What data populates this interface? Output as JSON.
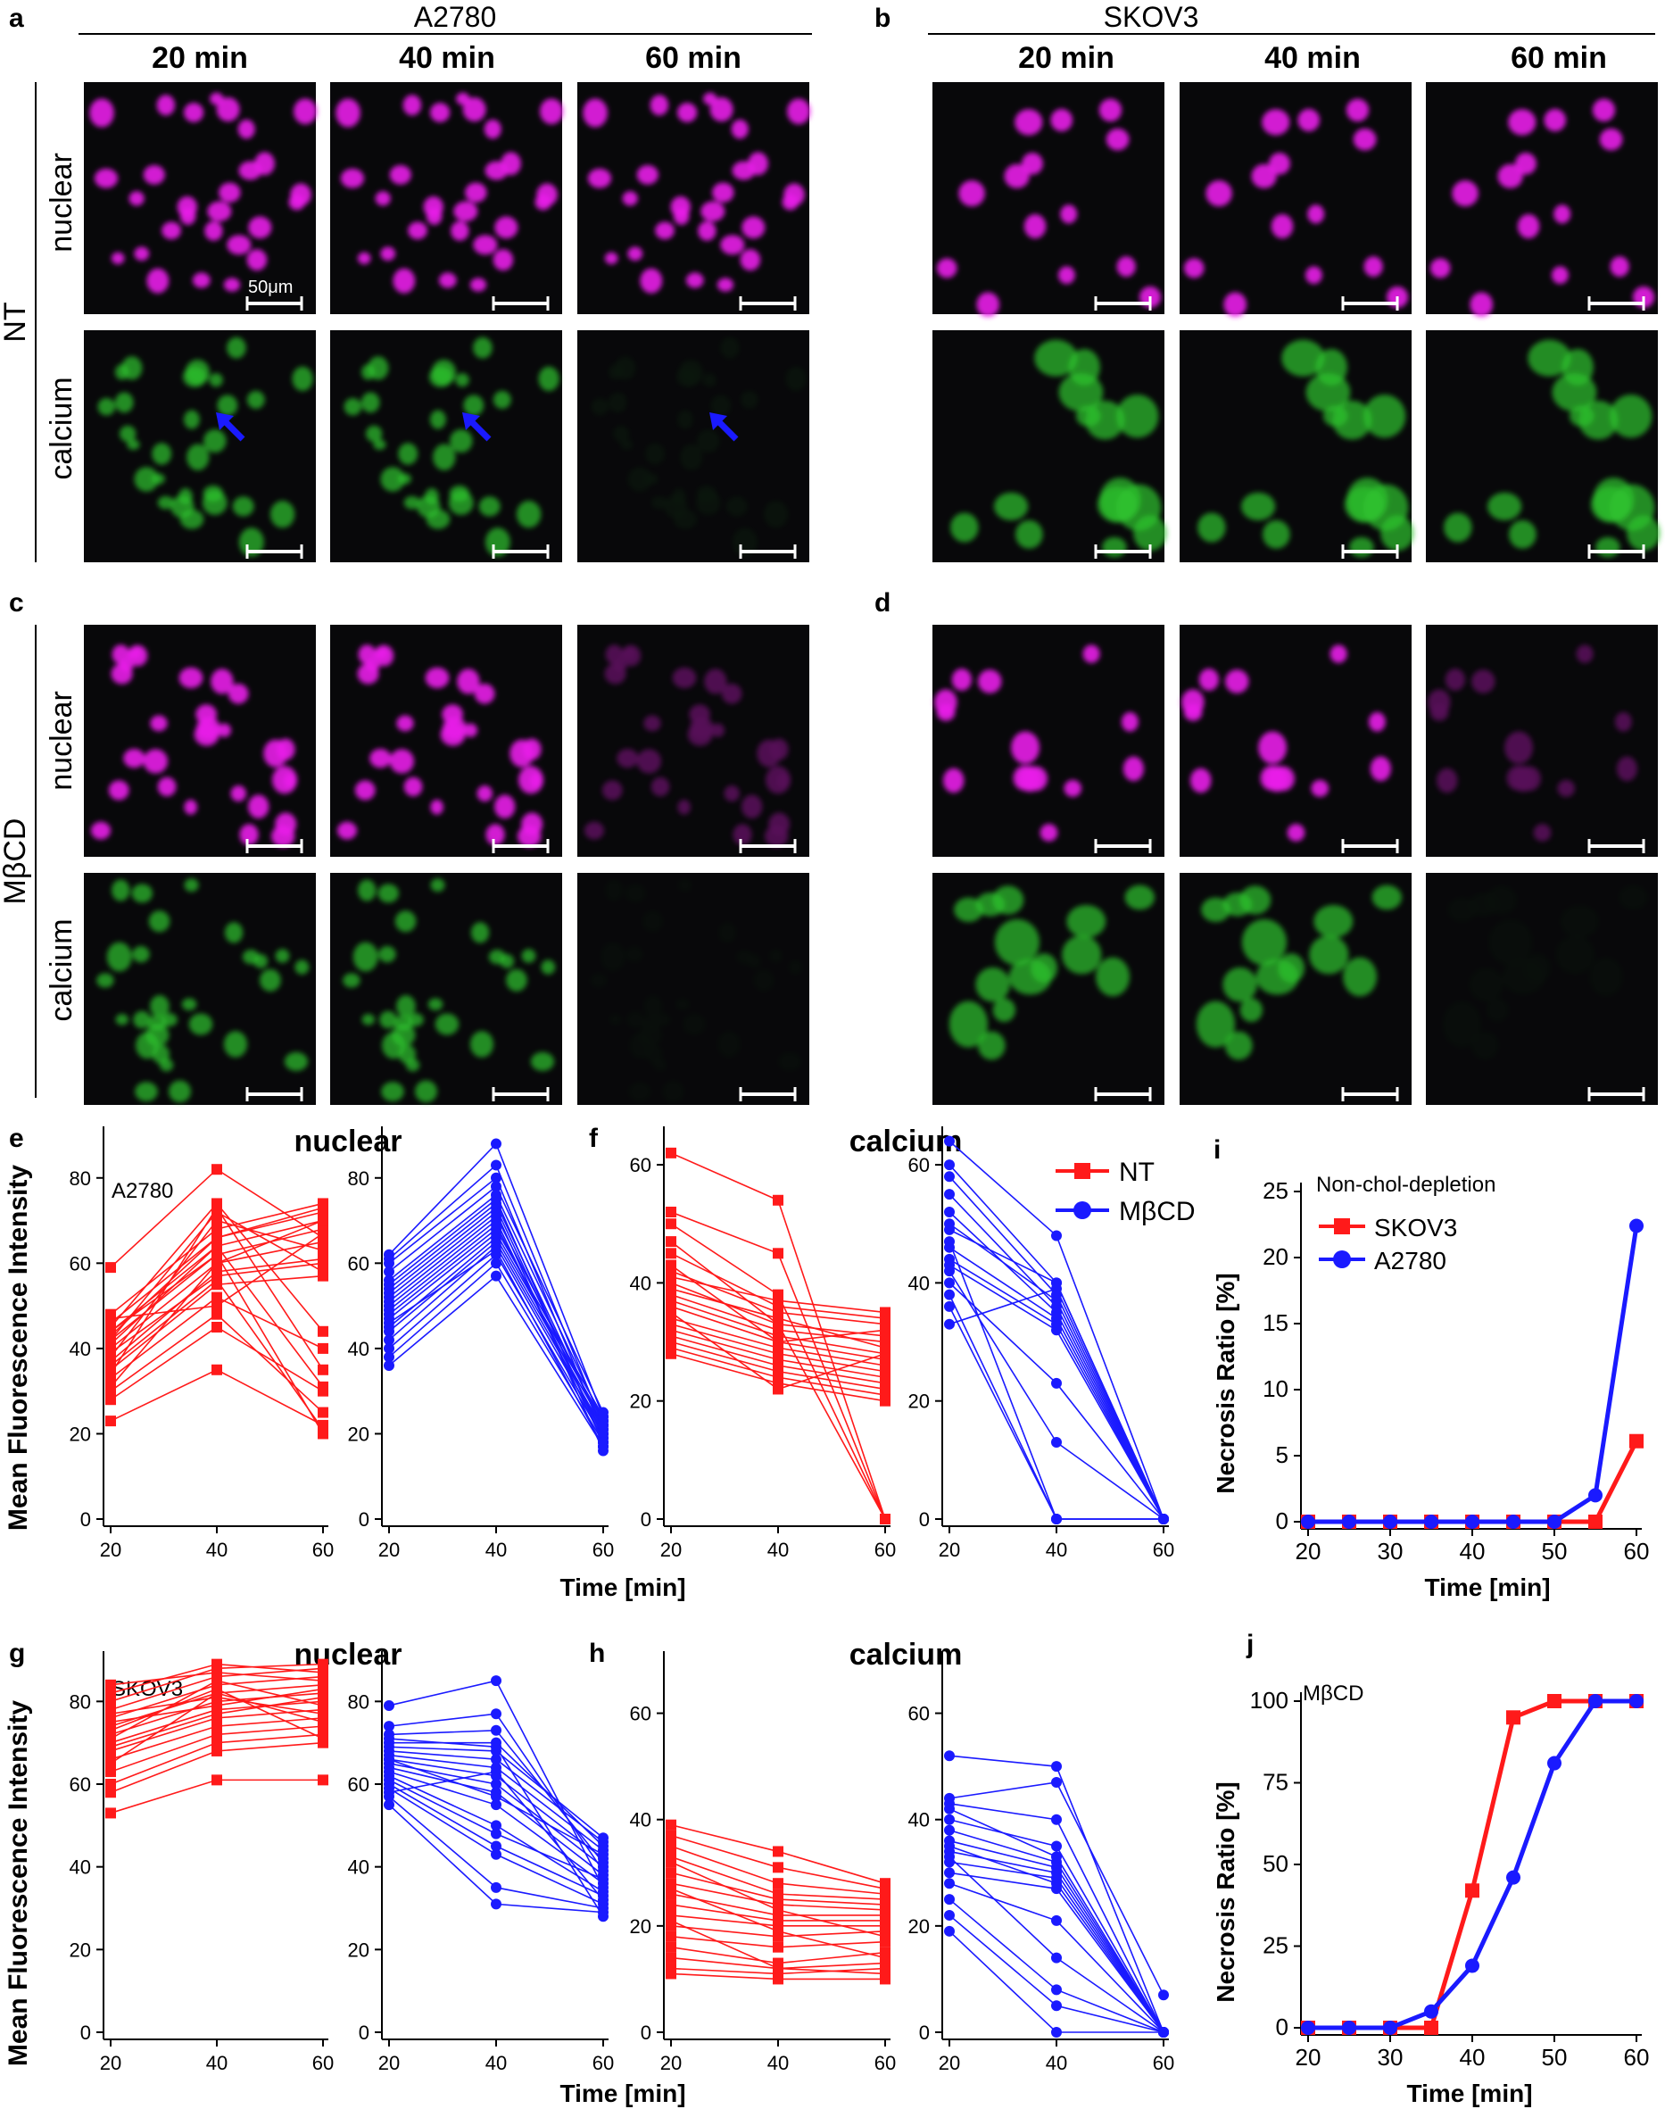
{
  "panel_letters": {
    "a": "a",
    "b": "b",
    "c": "c",
    "d": "d",
    "e": "e",
    "f": "f",
    "g": "g",
    "h": "h",
    "i": "i",
    "j": "j"
  },
  "cell_lines": {
    "left": "A2780",
    "right": "SKOV3"
  },
  "time_labels": [
    "20 min",
    "40 min",
    "60 min"
  ],
  "row_labels": {
    "nuclear": "nuclear",
    "calcium": "calcium"
  },
  "treatment_labels": {
    "nt": "NT",
    "mbcd": "MβCD"
  },
  "scale_bar_label": "50μm",
  "colors": {
    "nt": "#ff1a1a",
    "mbcd": "#1a1aff",
    "nuclear_stain": "#e81ee8",
    "calcium_stain": "#2fc42f",
    "micrograph_bg": "#08080a",
    "arrow": "#1a1aff"
  },
  "legend": {
    "nt": "NT",
    "mbcd": "MβCD"
  },
  "axis": {
    "y_mfi": "Mean Fluorescence Intensity",
    "time": "Time [min]",
    "necrosis": "Necrosis Ratio [%]"
  },
  "chart_titles": {
    "nuclear": "nuclear",
    "calcium": "calcium",
    "e_sub": "A2780",
    "g_sub": "SKOV3",
    "i_sub": "Non-chol-depletion",
    "j_sub": "MβCD"
  },
  "chart_data": [
    {
      "id": "e-nt",
      "type": "line",
      "x": [
        20,
        40,
        60
      ],
      "ylim": [
        0,
        90
      ],
      "yticks": [
        0,
        20,
        40,
        60,
        80
      ],
      "color": "#ff1a1a",
      "marker": "square",
      "series": [
        [
          23,
          35,
          22
        ],
        [
          28,
          45,
          30
        ],
        [
          30,
          48,
          25
        ],
        [
          33,
          52,
          40
        ],
        [
          35,
          55,
          57
        ],
        [
          37,
          58,
          61
        ],
        [
          40,
          60,
          65
        ],
        [
          42,
          62,
          68
        ],
        [
          44,
          64,
          70
        ],
        [
          46,
          66,
          72
        ],
        [
          48,
          68,
          74
        ],
        [
          38,
          70,
          63
        ],
        [
          42,
          72,
          58
        ],
        [
          45,
          74,
          44
        ],
        [
          31,
          60,
          70
        ],
        [
          41,
          64,
          31
        ],
        [
          47,
          50,
          67
        ],
        [
          59,
          82,
          66
        ],
        [
          36,
          56,
          21
        ],
        [
          43,
          66,
          73
        ],
        [
          34,
          73,
          35
        ],
        [
          39,
          57,
          60
        ],
        [
          44,
          62,
          20
        ]
      ]
    },
    {
      "id": "e-mbcd",
      "type": "line",
      "x": [
        20,
        40,
        60
      ],
      "ylim": [
        0,
        90
      ],
      "yticks": [
        0,
        20,
        40,
        60,
        80
      ],
      "color": "#1a1aff",
      "marker": "circle",
      "series": [
        [
          36,
          57,
          17
        ],
        [
          38,
          60,
          18
        ],
        [
          40,
          62,
          19
        ],
        [
          42,
          64,
          20
        ],
        [
          44,
          65,
          21
        ],
        [
          45,
          66,
          22
        ],
        [
          47,
          67,
          23
        ],
        [
          48,
          68,
          24
        ],
        [
          49,
          69,
          20
        ],
        [
          50,
          70,
          18
        ],
        [
          51,
          71,
          22
        ],
        [
          52,
          72,
          16
        ],
        [
          53,
          73,
          19
        ],
        [
          54,
          74,
          21
        ],
        [
          56,
          76,
          23
        ],
        [
          58,
          78,
          25
        ],
        [
          60,
          80,
          20
        ],
        [
          61,
          83,
          22
        ],
        [
          62,
          88,
          24
        ],
        [
          46,
          63,
          17
        ],
        [
          55,
          75,
          18
        ]
      ]
    },
    {
      "id": "f-nt",
      "type": "line",
      "x": [
        20,
        40,
        60
      ],
      "ylim": [
        0,
        65
      ],
      "yticks": [
        0,
        20,
        40,
        60
      ],
      "color": "#ff1a1a",
      "marker": "square",
      "series": [
        [
          62,
          54,
          0
        ],
        [
          52,
          45,
          0
        ],
        [
          50,
          38,
          0
        ],
        [
          45,
          36,
          34
        ],
        [
          42,
          35,
          33
        ],
        [
          40,
          33,
          31
        ],
        [
          38,
          32,
          30
        ],
        [
          37,
          31,
          28
        ],
        [
          36,
          30,
          27
        ],
        [
          34,
          29,
          26
        ],
        [
          33,
          28,
          25
        ],
        [
          32,
          27,
          24
        ],
        [
          31,
          26,
          23
        ],
        [
          30,
          25,
          22
        ],
        [
          29,
          24,
          21
        ],
        [
          28,
          23,
          20
        ],
        [
          41,
          37,
          35
        ],
        [
          39,
          34,
          29
        ],
        [
          35,
          22,
          28
        ],
        [
          43,
          30,
          32
        ],
        [
          47,
          33,
          0
        ]
      ]
    },
    {
      "id": "f-mbcd",
      "type": "line",
      "x": [
        20,
        40,
        60
      ],
      "ylim": [
        0,
        65
      ],
      "yticks": [
        0,
        20,
        40,
        60
      ],
      "color": "#1a1aff",
      "marker": "circle",
      "series": [
        [
          64,
          48,
          0
        ],
        [
          60,
          40,
          0
        ],
        [
          58,
          38,
          0
        ],
        [
          55,
          36,
          0
        ],
        [
          52,
          35,
          0
        ],
        [
          49,
          40,
          0
        ],
        [
          46,
          34,
          0
        ],
        [
          44,
          33,
          0
        ],
        [
          42,
          13,
          0
        ],
        [
          40,
          23,
          0
        ],
        [
          38,
          0,
          0
        ],
        [
          36,
          0,
          0
        ],
        [
          33,
          39,
          0
        ],
        [
          50,
          37,
          0
        ],
        [
          47,
          0,
          0
        ],
        [
          43,
          32,
          0
        ]
      ]
    },
    {
      "id": "g-nt",
      "type": "line",
      "x": [
        20,
        40,
        60
      ],
      "ylim": [
        0,
        90
      ],
      "yticks": [
        0,
        20,
        40,
        60,
        80
      ],
      "color": "#ff1a1a",
      "marker": "square",
      "series": [
        [
          53,
          61,
          61
        ],
        [
          58,
          68,
          70
        ],
        [
          60,
          70,
          72
        ],
        [
          63,
          72,
          74
        ],
        [
          66,
          74,
          76
        ],
        [
          68,
          76,
          78
        ],
        [
          70,
          78,
          80
        ],
        [
          72,
          80,
          82
        ],
        [
          74,
          82,
          84
        ],
        [
          76,
          84,
          86
        ],
        [
          78,
          86,
          88
        ],
        [
          80,
          88,
          89
        ],
        [
          82,
          89,
          87
        ],
        [
          84,
          87,
          85
        ],
        [
          65,
          82,
          75
        ],
        [
          71,
          85,
          79
        ],
        [
          75,
          79,
          83
        ],
        [
          77,
          81,
          77
        ],
        [
          69,
          77,
          81
        ],
        [
          73,
          83,
          71
        ]
      ]
    },
    {
      "id": "g-mbcd",
      "type": "line",
      "x": [
        20,
        40,
        60
      ],
      "ylim": [
        0,
        90
      ],
      "yticks": [
        0,
        20,
        40,
        60,
        80
      ],
      "color": "#1a1aff",
      "marker": "circle",
      "series": [
        [
          55,
          31,
          29
        ],
        [
          57,
          35,
          30
        ],
        [
          59,
          43,
          31
        ],
        [
          60,
          45,
          33
        ],
        [
          62,
          50,
          34
        ],
        [
          63,
          55,
          36
        ],
        [
          64,
          58,
          38
        ],
        [
          65,
          60,
          40
        ],
        [
          66,
          62,
          42
        ],
        [
          67,
          64,
          44
        ],
        [
          68,
          66,
          46
        ],
        [
          69,
          68,
          47
        ],
        [
          70,
          70,
          45
        ],
        [
          72,
          73,
          41
        ],
        [
          74,
          77,
          39
        ],
        [
          79,
          85,
          35
        ],
        [
          58,
          63,
          32
        ],
        [
          61,
          48,
          37
        ],
        [
          71,
          69,
          28
        ],
        [
          66,
          57,
          43
        ]
      ]
    },
    {
      "id": "h-nt",
      "type": "line",
      "x": [
        20,
        40,
        60
      ],
      "ylim": [
        0,
        70
      ],
      "yticks": [
        0,
        20,
        40,
        60
      ],
      "color": "#ff1a1a",
      "marker": "square",
      "series": [
        [
          39,
          34,
          28
        ],
        [
          37,
          31,
          27
        ],
        [
          35,
          28,
          26
        ],
        [
          33,
          26,
          25
        ],
        [
          30,
          25,
          24
        ],
        [
          28,
          24,
          23
        ],
        [
          26,
          22,
          22
        ],
        [
          24,
          21,
          21
        ],
        [
          22,
          20,
          20
        ],
        [
          20,
          18,
          19
        ],
        [
          18,
          16,
          17
        ],
        [
          16,
          13,
          15
        ],
        [
          14,
          12,
          13
        ],
        [
          12,
          11,
          12
        ],
        [
          11,
          10,
          10
        ],
        [
          21,
          12,
          11
        ],
        [
          27,
          19,
          14
        ],
        [
          32,
          23,
          18
        ]
      ]
    },
    {
      "id": "h-mbcd",
      "type": "line",
      "x": [
        20,
        40,
        60
      ],
      "ylim": [
        0,
        70
      ],
      "yticks": [
        0,
        20,
        40,
        60
      ],
      "color": "#1a1aff",
      "marker": "circle",
      "series": [
        [
          52,
          50,
          0
        ],
        [
          44,
          47,
          7
        ],
        [
          43,
          40,
          0
        ],
        [
          40,
          35,
          0
        ],
        [
          38,
          32,
          0
        ],
        [
          36,
          31,
          0
        ],
        [
          34,
          30,
          0
        ],
        [
          32,
          29,
          0
        ],
        [
          30,
          27,
          0
        ],
        [
          28,
          21,
          0
        ],
        [
          25,
          8,
          0
        ],
        [
          22,
          5,
          0
        ],
        [
          19,
          0,
          0
        ],
        [
          35,
          28,
          0
        ],
        [
          33,
          14,
          0
        ],
        [
          42,
          33,
          0
        ]
      ]
    },
    {
      "id": "i",
      "type": "line",
      "x": [
        20,
        25,
        30,
        35,
        40,
        45,
        50,
        55,
        60
      ],
      "xlim": [
        20,
        60
      ],
      "xticks": [
        20,
        30,
        40,
        50,
        60
      ],
      "ylim": [
        0,
        25
      ],
      "yticks": [
        0,
        5,
        10,
        15,
        20,
        25
      ],
      "series": [
        {
          "name": "SKOV3",
          "color": "#ff1a1a",
          "marker": "square",
          "values": [
            0,
            0,
            0,
            0,
            0,
            0,
            0,
            0,
            6.1
          ]
        },
        {
          "name": "A2780",
          "color": "#1a1aff",
          "marker": "circle",
          "values": [
            0,
            0,
            0,
            0,
            0,
            0,
            0,
            2.0,
            22.4
          ]
        }
      ]
    },
    {
      "id": "j",
      "type": "line",
      "x": [
        20,
        25,
        30,
        35,
        40,
        45,
        50,
        55,
        60
      ],
      "xlim": [
        20,
        60
      ],
      "xticks": [
        20,
        30,
        40,
        50,
        60
      ],
      "ylim": [
        0,
        100
      ],
      "yticks": [
        0,
        25,
        50,
        75,
        100
      ],
      "series": [
        {
          "name": "SKOV3",
          "color": "#ff1a1a",
          "marker": "square",
          "values": [
            0,
            0,
            0,
            0,
            42,
            95,
            100,
            100,
            100
          ]
        },
        {
          "name": "A2780",
          "color": "#1a1aff",
          "marker": "circle",
          "values": [
            0,
            0,
            0,
            5,
            19,
            46,
            81,
            100,
            100
          ]
        }
      ]
    }
  ]
}
